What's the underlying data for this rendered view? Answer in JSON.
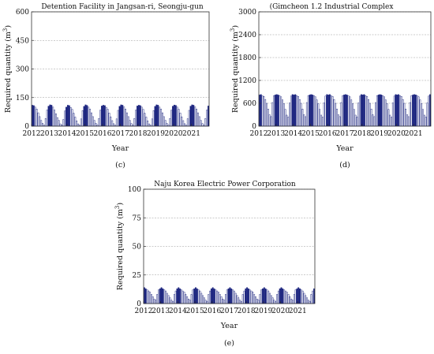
{
  "chart_data": [
    {
      "type": "bar",
      "panel_label": "(c)",
      "title": "Detention Facility in Jangsan-ri, Seongju-gun",
      "xlabel": "Year",
      "ylabel": "Required quantity (m",
      "ylabel_sup": "3",
      "ylabel_tail": ")",
      "ylim": [
        0,
        600
      ],
      "yticks": [
        0,
        150,
        300,
        450,
        600
      ],
      "xticks": [
        "2012",
        "2013",
        "2014",
        "2015",
        "2016",
        "2017",
        "2018",
        "2019",
        "2020",
        "2021"
      ],
      "grid": "horizontal-dashed",
      "series": [
        {
          "values": [
            110,
            108,
            100,
            90,
            70,
            50,
            30,
            15,
            5,
            40,
            85,
            105,
            112,
            110,
            100,
            85,
            65,
            45,
            30,
            12,
            5,
            35,
            80,
            100,
            110,
            108,
            98,
            88,
            68,
            48,
            28,
            12,
            5,
            38,
            82,
            104,
            112,
            109,
            100,
            90,
            70,
            50,
            30,
            15,
            5,
            40,
            84,
            106,
            110,
            108,
            99,
            89,
            69,
            49,
            29,
            13,
            5,
            38,
            83,
            104,
            112,
            110,
            101,
            90,
            70,
            50,
            30,
            14,
            5,
            40,
            85,
            106,
            110,
            108,
            100,
            88,
            68,
            48,
            28,
            12,
            5,
            38,
            82,
            104,
            112,
            110,
            100,
            90,
            70,
            50,
            30,
            15,
            5,
            40,
            84,
            105,
            111,
            109,
            100,
            89,
            69,
            49,
            29,
            13,
            5,
            39,
            83,
            105,
            112,
            110,
            101,
            90,
            70,
            50,
            30,
            14,
            5,
            40,
            85,
            106
          ]
        }
      ]
    },
    {
      "type": "bar",
      "panel_label": "(d)",
      "title": "(Gimcheon 1.2 Industrial Complex",
      "xlabel": "Year",
      "ylabel": "Required quantity (m",
      "ylabel_sup": "3",
      "ylabel_tail": ")",
      "ylim": [
        0,
        3000
      ],
      "yticks": [
        0,
        600,
        1200,
        1800,
        2400,
        3000
      ],
      "xticks": [
        "2012",
        "2013",
        "2014",
        "2015",
        "2016",
        "2017",
        "2018",
        "2019",
        "2020",
        "2021"
      ],
      "grid": "horizontal-dashed",
      "series": [
        {
          "values": [
            820,
            830,
            800,
            780,
            700,
            600,
            450,
            300,
            250,
            620,
            800,
            820,
            830,
            820,
            800,
            770,
            690,
            590,
            440,
            290,
            240,
            610,
            790,
            830,
            820,
            830,
            800,
            780,
            700,
            600,
            450,
            300,
            250,
            620,
            800,
            820,
            830,
            820,
            800,
            770,
            690,
            590,
            440,
            290,
            240,
            610,
            790,
            830,
            820,
            830,
            800,
            780,
            700,
            600,
            450,
            300,
            250,
            620,
            800,
            820,
            830,
            820,
            800,
            770,
            690,
            590,
            440,
            290,
            240,
            610,
            790,
            830,
            820,
            830,
            800,
            780,
            700,
            600,
            450,
            300,
            250,
            620,
            800,
            820,
            830,
            820,
            800,
            770,
            690,
            590,
            440,
            290,
            240,
            610,
            790,
            830,
            820,
            830,
            800,
            780,
            700,
            600,
            450,
            300,
            250,
            620,
            800,
            820,
            830,
            820,
            800,
            770,
            690,
            590,
            440,
            290,
            240,
            610,
            790,
            830
          ]
        }
      ]
    },
    {
      "type": "bar",
      "panel_label": "(e)",
      "title": "Naju Korea Electric Power Corporation",
      "xlabel": "Year",
      "ylabel": "Required quantity (m",
      "ylabel_sup": "3",
      "ylabel_tail": ")",
      "ylim": [
        0,
        100
      ],
      "yticks": [
        0,
        25,
        50,
        75,
        100
      ],
      "xticks": [
        "2012",
        "2013",
        "2014",
        "2015",
        "2016",
        "2017",
        "2018",
        "2019",
        "2020",
        "2021"
      ],
      "grid": "horizontal-dashed",
      "series": [
        {
          "values": [
            14,
            13,
            12,
            11,
            10,
            8,
            6,
            4,
            3,
            8,
            12,
            13,
            14,
            13,
            12,
            11,
            9,
            7,
            5,
            3,
            2,
            8,
            11,
            13,
            14,
            13,
            12,
            11,
            10,
            8,
            6,
            4,
            3,
            8,
            12,
            13,
            14,
            13,
            12,
            11,
            9,
            7,
            5,
            3,
            2,
            8,
            11,
            13,
            14,
            13,
            12,
            11,
            10,
            8,
            6,
            4,
            3,
            8,
            12,
            13,
            14,
            13,
            12,
            11,
            9,
            7,
            5,
            3,
            2,
            8,
            11,
            13,
            14,
            13,
            12,
            11,
            10,
            8,
            6,
            4,
            3,
            8,
            12,
            13,
            14,
            13,
            12,
            11,
            9,
            7,
            5,
            3,
            2,
            8,
            11,
            13,
            14,
            13,
            12,
            11,
            10,
            8,
            6,
            4,
            3,
            8,
            12,
            13,
            14,
            13,
            12,
            11,
            9,
            7,
            5,
            3,
            2,
            8,
            11,
            13
          ]
        }
      ]
    }
  ],
  "colors": {
    "bar_fill": "#ffffff",
    "bar_stroke": "#1a237e",
    "bar_dark": "#1a237e",
    "grid": "#9a9a9a",
    "axis": "#333333"
  }
}
